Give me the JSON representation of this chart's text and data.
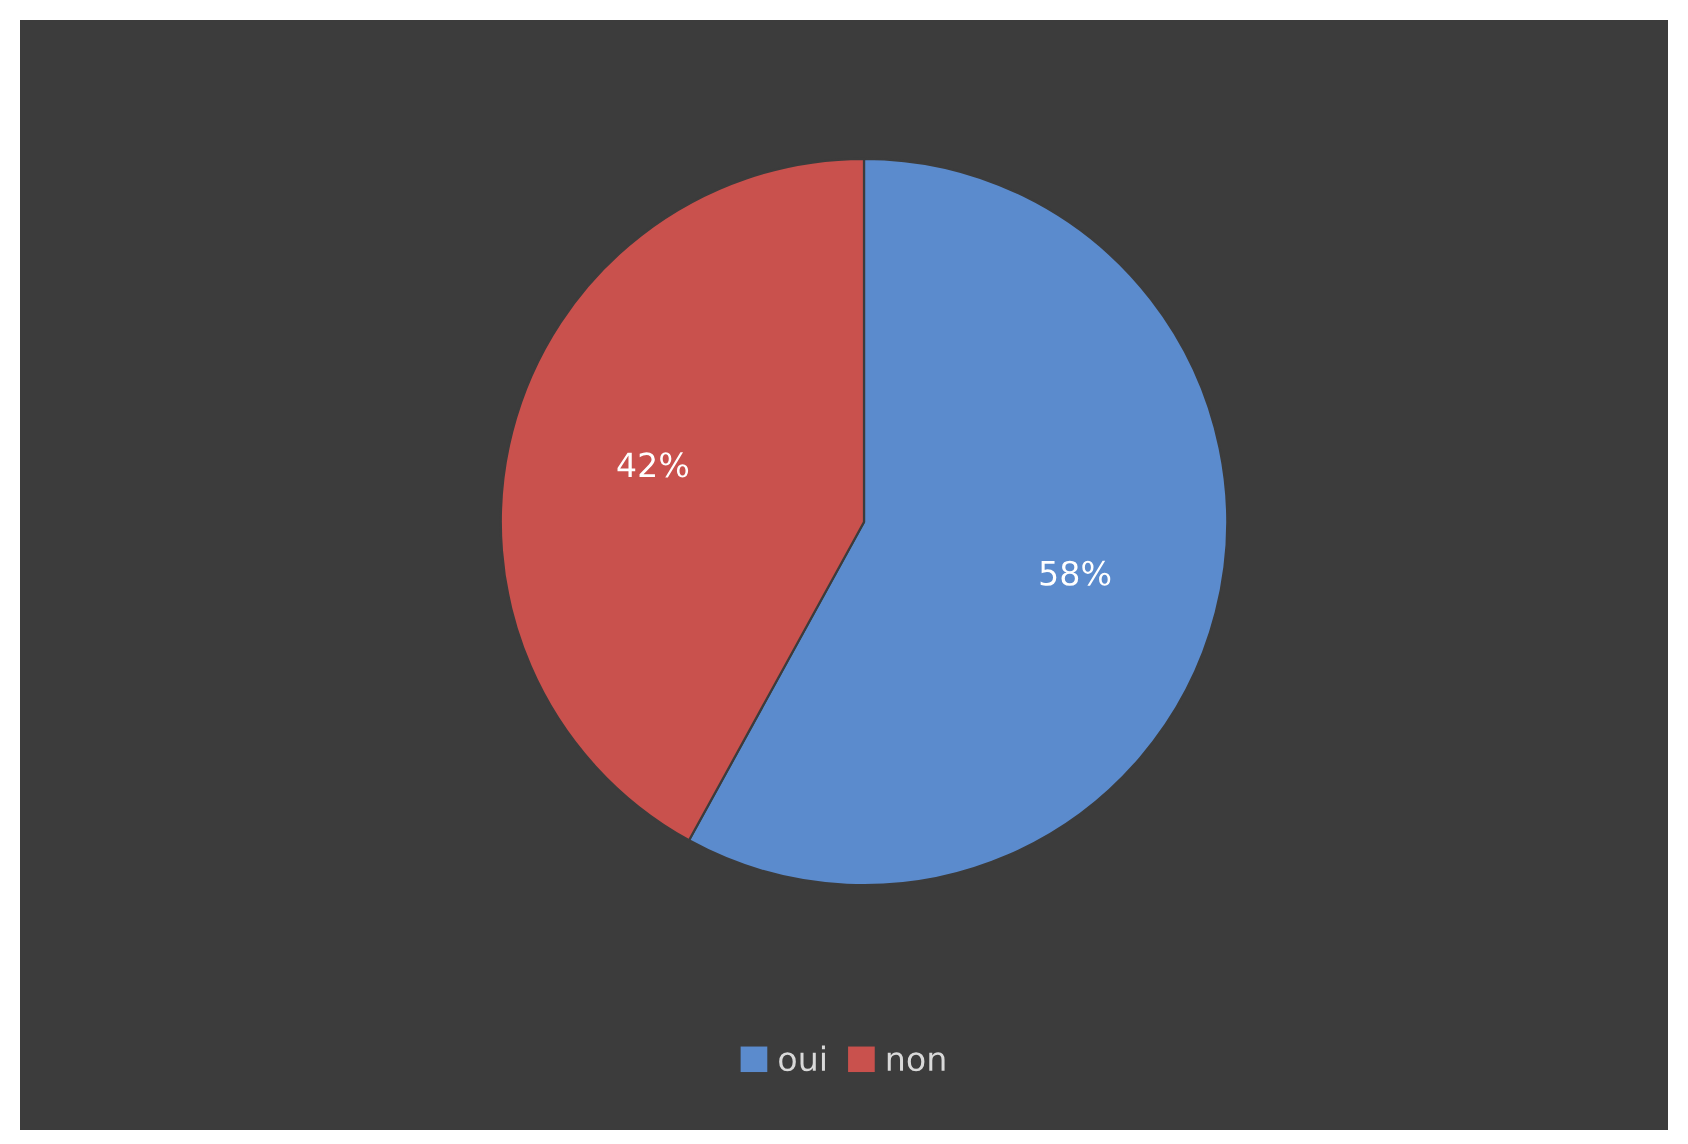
{
  "chart_data": {
    "type": "pie",
    "categories": [
      "oui",
      "non"
    ],
    "values": [
      58,
      42
    ],
    "colors": [
      "#5b8bcd",
      "#c9514d"
    ],
    "value_labels": [
      "58%",
      "42%"
    ],
    "legend": "bottom"
  }
}
